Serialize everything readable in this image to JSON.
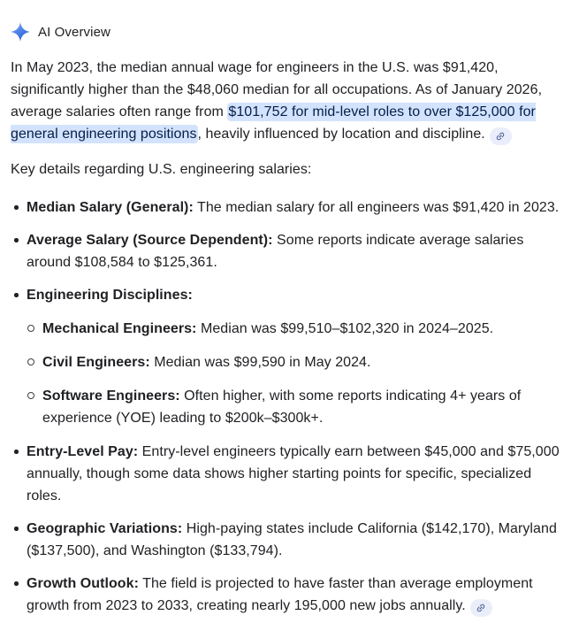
{
  "header": {
    "title": "AI Overview",
    "icon": "sparkle-icon"
  },
  "intro": {
    "pre_highlight": "In May 2023, the median annual wage for engineers in the U.S. was $91,420, significantly higher than the $48,060 median for all occupations. As of January 2026, average salaries often range from ",
    "highlight": "$101,752 for mid-level roles to over $125,000 for general engineering positions",
    "post_highlight": ", heavily influenced by location and discipline.",
    "citation_icon": "link-icon"
  },
  "subheading": "Key details regarding U.S. engineering salaries:",
  "list": {
    "items": [
      {
        "label": "Median Salary (General):",
        "text": " The median salary for all engineers was $91,420 in 2023."
      },
      {
        "label": "Average Salary (Source Dependent):",
        "text": " Some reports indicate average salaries around $108,584 to $125,361."
      },
      {
        "label": "Engineering Disciplines:",
        "text": "",
        "sub_items": [
          {
            "label": "Mechanical Engineers:",
            "text": " Median was $99,510–$102,320 in 2024–2025."
          },
          {
            "label": "Civil Engineers:",
            "text": " Median was $99,590 in May 2024."
          },
          {
            "label": "Software Engineers:",
            "text": " Often higher, with some reports indicating 4+ years of experience (YOE) leading to $200k–$300k+."
          }
        ]
      },
      {
        "label": "Entry-Level Pay:",
        "text": " Entry-level engineers typically earn between $45,000 and $75,000 annually, though some data shows higher starting points for specific, specialized roles."
      },
      {
        "label": "Geographic Variations:",
        "text": " High-paying states include California ($142,170), Maryland ($137,500), and Washington ($133,794)."
      },
      {
        "label": "Growth Outlook:",
        "text": " The field is projected to have faster than average employment growth from 2023 to 2033, creating nearly 195,000 new jobs annually.",
        "has_link": true
      }
    ]
  },
  "colors": {
    "text": "#202124",
    "highlight_bg": "#d3e3fd",
    "highlight_text": "#041e49",
    "chip_bg": "#e9eefa",
    "chip_icon": "#41538c",
    "sparkle_light": "#79a4f8",
    "sparkle_dark": "#1f5cd3"
  }
}
